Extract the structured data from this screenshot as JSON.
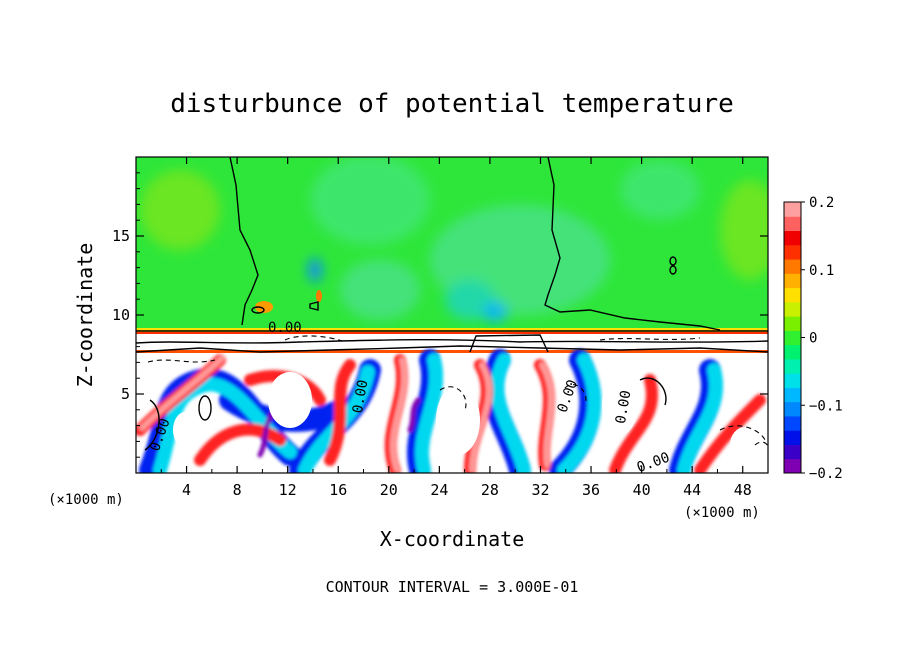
{
  "chart_data": {
    "type": "heatmap",
    "title": "disturbunce of potential temperature",
    "xlabel": "X-coordinate",
    "ylabel": "Z-coordinate",
    "x_unit": "(×1000 m)",
    "y_unit": "(×1000 m)",
    "footer": "CONTOUR INTERVAL = 3.000E-01",
    "xlim": [
      0,
      50
    ],
    "ylim": [
      0,
      20
    ],
    "x_ticks": [
      4,
      8,
      12,
      16,
      20,
      24,
      28,
      32,
      36,
      40,
      44,
      48
    ],
    "y_ticks": [
      5,
      10,
      15
    ],
    "colorbar": {
      "min": -0.2,
      "max": 0.2,
      "tick_values": [
        0.2,
        0.1,
        0,
        -0.1,
        -0.2
      ],
      "tick_labels": [
        "0.2",
        "0.1",
        "0",
        "−0.1",
        "−0.2"
      ],
      "colors": [
        "#7f00b2",
        "#3a00c8",
        "#0010e8",
        "#0048ff",
        "#0088ff",
        "#00b8ff",
        "#00e0e8",
        "#00f0b0",
        "#00f070",
        "#30f030",
        "#7af000",
        "#c8f000",
        "#ffe000",
        "#ffb000",
        "#ff7800",
        "#ff3000",
        "#f00000",
        "#ff6060",
        "#ffa0a0"
      ]
    },
    "contour_labels": [
      "0.00",
      "0.00",
      "0.00",
      "0.00",
      "0.00",
      "0.00"
    ]
  }
}
